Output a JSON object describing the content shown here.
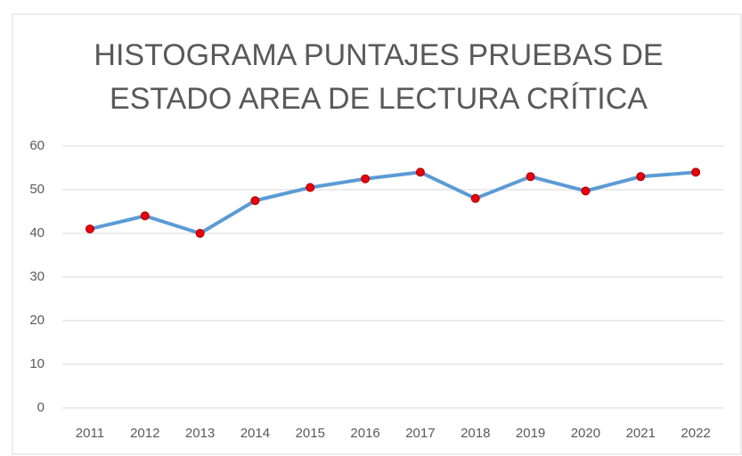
{
  "chart_data": {
    "type": "line",
    "title": "HISTOGRAMA PUNTAJES PRUEBAS DE ESTADO AREA DE LECTURA CRÍTICA",
    "categories": [
      "2011",
      "2012",
      "2013",
      "2014",
      "2015",
      "2016",
      "2017",
      "2018",
      "2019",
      "2020",
      "2021",
      "2022"
    ],
    "series": [
      {
        "color": "#5b9bd5",
        "marker_color": "#e8000b",
        "values": [
          41,
          44,
          40,
          47.5,
          50.5,
          52.5,
          54,
          48,
          53,
          49.7,
          53,
          54
        ]
      }
    ],
    "ylim": [
      0,
      60
    ],
    "yticks": [
      0,
      10,
      20,
      30,
      40,
      50,
      60
    ],
    "grid": true
  }
}
